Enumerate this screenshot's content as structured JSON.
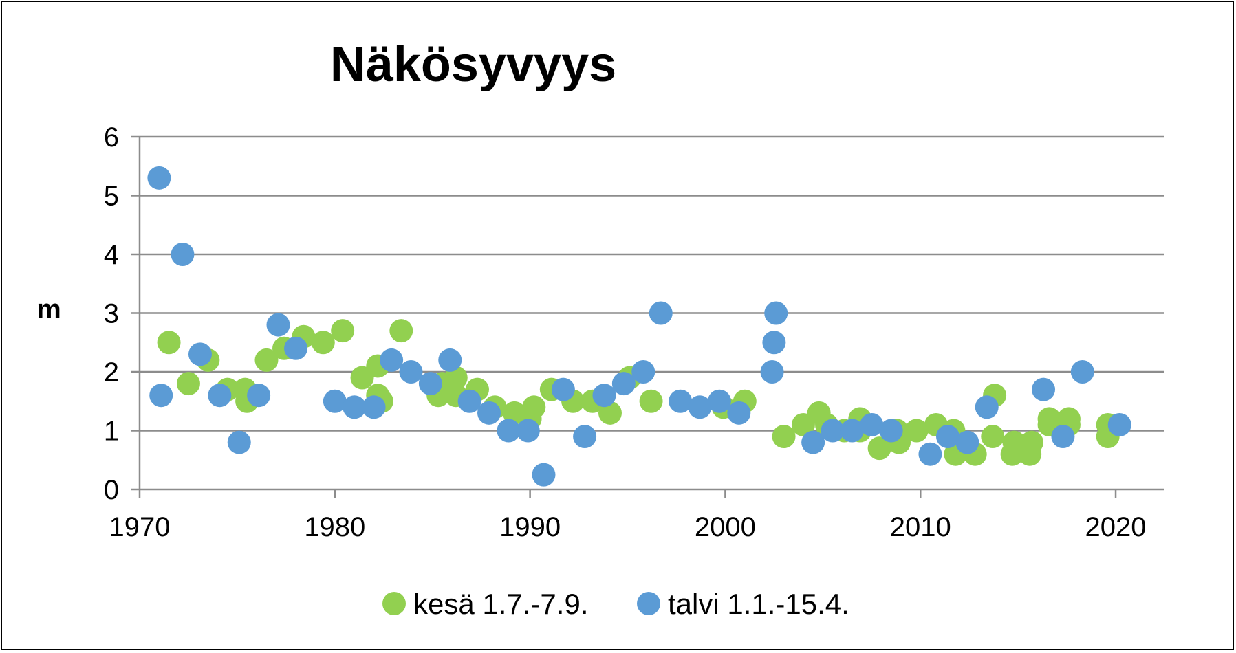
{
  "chart_data": {
    "type": "scatter",
    "title": "Näkösyvyys",
    "xlabel": "",
    "ylabel": "m",
    "xlim": [
      1970,
      2022.5
    ],
    "ylim": [
      0,
      6
    ],
    "xticks": [
      1970,
      1980,
      1990,
      2000,
      2010,
      2020
    ],
    "yticks": [
      0,
      1,
      2,
      3,
      4,
      5,
      6
    ],
    "grid": "horizontal",
    "legend_position": "bottom",
    "series": [
      {
        "name": "kesä 1.7.-7.9.",
        "color": "#92D050",
        "points": [
          [
            1971.5,
            2.5
          ],
          [
            1972.5,
            1.8
          ],
          [
            1973.5,
            2.2
          ],
          [
            1974.5,
            1.7
          ],
          [
            1975.4,
            1.7
          ],
          [
            1975.5,
            1.5
          ],
          [
            1976.5,
            2.2
          ],
          [
            1977.4,
            2.4
          ],
          [
            1978.4,
            2.6
          ],
          [
            1979.4,
            2.5
          ],
          [
            1980.4,
            2.7
          ],
          [
            1981.4,
            1.9
          ],
          [
            1982.2,
            2.1
          ],
          [
            1982.2,
            1.6
          ],
          [
            1982.4,
            1.5
          ],
          [
            1983.4,
            2.7
          ],
          [
            1985.3,
            1.6
          ],
          [
            1985.5,
            1.8
          ],
          [
            1986.2,
            1.9
          ],
          [
            1986.2,
            1.6
          ],
          [
            1987.3,
            1.7
          ],
          [
            1988.2,
            1.4
          ],
          [
            1989.2,
            1.3
          ],
          [
            1990.0,
            1.2
          ],
          [
            1990.2,
            1.4
          ],
          [
            1991.1,
            1.7
          ],
          [
            1992.2,
            1.5
          ],
          [
            1993.2,
            1.5
          ],
          [
            1994.1,
            1.3
          ],
          [
            1995.1,
            1.9
          ],
          [
            1996.2,
            1.5
          ],
          [
            1999.9,
            1.4
          ],
          [
            2001.0,
            1.5
          ],
          [
            2003.0,
            0.9
          ],
          [
            2004.0,
            1.1
          ],
          [
            2004.8,
            1.3
          ],
          [
            2005.2,
            1.1
          ],
          [
            2006.1,
            1.0
          ],
          [
            2006.9,
            1.0
          ],
          [
            2006.9,
            1.2
          ],
          [
            2007.9,
            0.7
          ],
          [
            2008.8,
            1.0
          ],
          [
            2008.9,
            0.8
          ],
          [
            2009.8,
            1.0
          ],
          [
            2010.8,
            1.1
          ],
          [
            2011.7,
            1.0
          ],
          [
            2011.8,
            0.6
          ],
          [
            2012.8,
            0.6
          ],
          [
            2013.7,
            0.9
          ],
          [
            2013.8,
            1.6
          ],
          [
            2014.7,
            0.6
          ],
          [
            2014.8,
            0.8
          ],
          [
            2015.6,
            0.6
          ],
          [
            2015.7,
            0.8
          ],
          [
            2016.6,
            1.2
          ],
          [
            2016.6,
            1.1
          ],
          [
            2017.6,
            1.2
          ],
          [
            2017.6,
            1.1
          ],
          [
            2019.6,
            1.1
          ],
          [
            2019.6,
            0.9
          ]
        ]
      },
      {
        "name": "talvi 1.1.-15.4.",
        "color": "#5B9BD5",
        "points": [
          [
            1971.0,
            5.3
          ],
          [
            1971.1,
            1.6
          ],
          [
            1972.2,
            4.0
          ],
          [
            1973.1,
            2.3
          ],
          [
            1974.1,
            1.6
          ],
          [
            1975.1,
            0.8
          ],
          [
            1976.1,
            1.6
          ],
          [
            1977.1,
            2.8
          ],
          [
            1978.0,
            2.4
          ],
          [
            1980.0,
            1.5
          ],
          [
            1981.0,
            1.4
          ],
          [
            1982.0,
            1.4
          ],
          [
            1982.9,
            2.2
          ],
          [
            1983.9,
            2.0
          ],
          [
            1984.9,
            1.8
          ],
          [
            1985.9,
            2.2
          ],
          [
            1986.9,
            1.5
          ],
          [
            1987.9,
            1.3
          ],
          [
            1988.9,
            1.0
          ],
          [
            1989.9,
            1.0
          ],
          [
            1990.7,
            0.25
          ],
          [
            1991.7,
            1.7
          ],
          [
            1992.8,
            0.9
          ],
          [
            1993.8,
            1.6
          ],
          [
            1994.8,
            1.8
          ],
          [
            1995.8,
            2.0
          ],
          [
            1996.7,
            3.0
          ],
          [
            1997.7,
            1.5
          ],
          [
            1998.7,
            1.4
          ],
          [
            1999.7,
            1.5
          ],
          [
            2000.7,
            1.3
          ],
          [
            2002.4,
            2.0
          ],
          [
            2002.5,
            2.5
          ],
          [
            2002.6,
            3.0
          ],
          [
            2004.5,
            0.8
          ],
          [
            2005.5,
            1.0
          ],
          [
            2006.5,
            1.0
          ],
          [
            2007.5,
            1.1
          ],
          [
            2008.5,
            1.0
          ],
          [
            2010.5,
            0.6
          ],
          [
            2011.4,
            0.9
          ],
          [
            2012.4,
            0.8
          ],
          [
            2013.4,
            1.4
          ],
          [
            2016.3,
            1.7
          ],
          [
            2017.3,
            0.9
          ],
          [
            2018.3,
            2.0
          ],
          [
            2020.2,
            1.1
          ]
        ]
      }
    ]
  }
}
